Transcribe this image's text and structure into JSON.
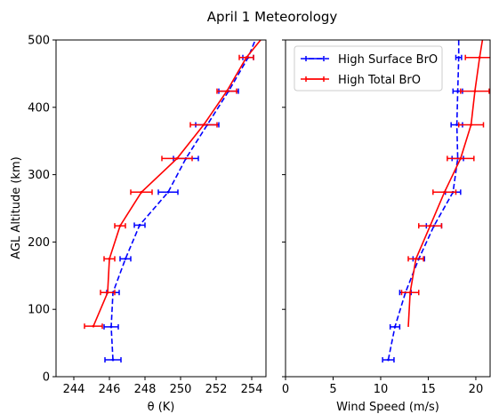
{
  "chart_data": {
    "title": "April 1 Meteorology",
    "ylabel": "AGL Altitude (km)",
    "ylim": [
      0,
      500
    ],
    "yticks": [
      0,
      100,
      200,
      300,
      400,
      500
    ],
    "legend": {
      "placement": "top-right of right panel",
      "entries": [
        "High Surface BrO",
        "High Total BrO"
      ]
    },
    "colors": {
      "surface": "#0000ff",
      "total": "#ff0000"
    },
    "panels": [
      {
        "type": "line",
        "xlabel": "θ (K)",
        "xlim": [
          243,
          254.8
        ],
        "xticks": [
          244,
          246,
          248,
          250,
          252,
          254
        ],
        "series": [
          {
            "name": "High Surface BrO",
            "style": "dashed",
            "points": [
              {
                "x": 246.2,
                "y": 25,
                "err": 0.45
              },
              {
                "x": 246.1,
                "y": 74,
                "err": 0.4
              },
              {
                "x": 246.2,
                "y": 125,
                "err": 0.35
              },
              {
                "x": 246.9,
                "y": 175,
                "err": 0.3
              },
              {
                "x": 247.7,
                "y": 225,
                "err": 0.3
              },
              {
                "x": 249.3,
                "y": 274,
                "err": 0.55
              },
              {
                "x": 250.3,
                "y": 324,
                "err": 0.7
              },
              {
                "x": 251.5,
                "y": 374,
                "err": 0.65
              },
              {
                "x": 252.7,
                "y": 424,
                "err": 0.55
              },
              {
                "x": 253.8,
                "y": 474,
                "err": 0.3
              },
              {
                "x": 254.2,
                "y": 500
              }
            ]
          },
          {
            "name": "High Total BrO",
            "style": "solid",
            "points": [
              {
                "x": 245.1,
                "y": 75,
                "err": 0.5
              },
              {
                "x": 245.9,
                "y": 125,
                "err": 0.4
              },
              {
                "x": 246.0,
                "y": 175,
                "err": 0.3
              },
              {
                "x": 246.6,
                "y": 224,
                "err": 0.3
              },
              {
                "x": 247.8,
                "y": 274,
                "err": 0.6
              },
              {
                "x": 249.8,
                "y": 324,
                "err": 0.85
              },
              {
                "x": 251.3,
                "y": 374,
                "err": 0.75
              },
              {
                "x": 252.6,
                "y": 424,
                "err": 0.55
              },
              {
                "x": 253.7,
                "y": 474,
                "err": 0.4
              },
              {
                "x": 254.5,
                "y": 500
              }
            ]
          }
        ]
      },
      {
        "type": "line",
        "xlabel": "Wind Speed (m/s)",
        "xlim": [
          0,
          21.5
        ],
        "xticks": [
          0,
          5,
          10,
          15,
          20
        ],
        "series": [
          {
            "name": "High Surface BrO",
            "style": "dashed",
            "points": [
              {
                "x": 10.8,
                "y": 25,
                "err": 0.6
              },
              {
                "x": 11.5,
                "y": 74,
                "err": 0.5
              },
              {
                "x": 12.6,
                "y": 125,
                "err": 0.6
              },
              {
                "x": 14.0,
                "y": 175,
                "err": 0.6
              },
              {
                "x": 15.6,
                "y": 224,
                "err": 0.8
              },
              {
                "x": 17.6,
                "y": 274,
                "err": 0.8
              },
              {
                "x": 18.1,
                "y": 324,
                "err": 0.6
              },
              {
                "x": 18.0,
                "y": 374,
                "err": 0.6
              },
              {
                "x": 18.1,
                "y": 424,
                "err": 0.5
              },
              {
                "x": 18.2,
                "y": 474,
                "err": 0.3
              },
              {
                "x": 18.2,
                "y": 500
              }
            ]
          },
          {
            "name": "High Total BrO",
            "style": "solid",
            "points": [
              {
                "x": 12.9,
                "y": 74
              },
              {
                "x": 13.1,
                "y": 125,
                "err": 0.9
              },
              {
                "x": 13.7,
                "y": 175,
                "err": 0.8
              },
              {
                "x": 15.2,
                "y": 224,
                "err": 1.2
              },
              {
                "x": 16.7,
                "y": 274,
                "err": 1.2
              },
              {
                "x": 18.4,
                "y": 324,
                "err": 1.4
              },
              {
                "x": 19.5,
                "y": 374,
                "err": 1.3
              },
              {
                "x": 19.9,
                "y": 424,
                "err": 1.5
              },
              {
                "x": 20.4,
                "y": 474,
                "err": 1.5
              },
              {
                "x": 20.7,
                "y": 500
              }
            ]
          }
        ]
      }
    ]
  }
}
